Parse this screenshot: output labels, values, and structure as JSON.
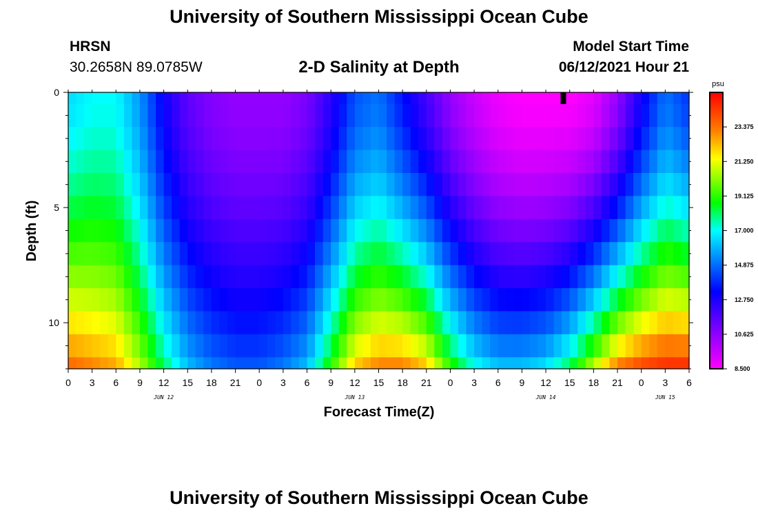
{
  "header": {
    "title": "University of Southern Mississippi Ocean Cube",
    "site": "HRSN",
    "coords": "30.2658N  89.0785W",
    "model_start_label": "Model Start Time",
    "model_start_time": "06/12/2021 Hour 21"
  },
  "footer": {
    "title": "University of Southern Mississippi Ocean Cube"
  },
  "chart_data": {
    "type": "heatmap",
    "title": "2-D Salinity at Depth",
    "xlabel": "Forecast Time(Z)",
    "ylabel": "Depth (ft)",
    "units": "psu",
    "xlim_hours": [
      0,
      78
    ],
    "ylim": [
      0,
      12
    ],
    "x_tick_labels": [
      "0",
      "3",
      "6",
      "9",
      "12",
      "15",
      "18",
      "21",
      "0",
      "3",
      "6",
      "9",
      "12",
      "15",
      "18",
      "21",
      "0",
      "3",
      "6",
      "9",
      "12",
      "15",
      "18",
      "21",
      "0",
      "3",
      "6"
    ],
    "y_tick_labels": [
      "0",
      "5",
      "10"
    ],
    "day_labels": [
      {
        "label": "JUN 12",
        "hour": 12
      },
      {
        "label": "JUN 13",
        "hour": 36
      },
      {
        "label": "JUN 14",
        "hour": 60
      },
      {
        "label": "JUN 15",
        "hour": 75
      }
    ],
    "colorbar": {
      "min": 8.5,
      "max": 25.5,
      "tick_labels": [
        "23.375",
        "21.250",
        "19.125",
        "17.000",
        "14.875",
        "12.750",
        "10.625",
        "8.500"
      ]
    },
    "current_time_marker_hour": 62.2,
    "time_hours": [
      0,
      3,
      6,
      9,
      12,
      15,
      18,
      21,
      24,
      27,
      30,
      33,
      36,
      39,
      42,
      45,
      48,
      51,
      54,
      57,
      60,
      63,
      66,
      69,
      72,
      75,
      78
    ],
    "depth_levels_ft": [
      0,
      1,
      2,
      3,
      4,
      5,
      6,
      7,
      8,
      9,
      10,
      11,
      12
    ],
    "salinity_surface": [
      16.5,
      17.0,
      17.0,
      15.5,
      13.0,
      11.5,
      10.8,
      10.5,
      10.5,
      10.5,
      11.0,
      12.5,
      14.5,
      15.0,
      13.5,
      12.0,
      10.5,
      9.5,
      8.8,
      8.5,
      8.5,
      8.5,
      9.0,
      10.5,
      13.0,
      15.0,
      14.0
    ],
    "salinity_bottom": [
      23.5,
      23.0,
      22.5,
      20.5,
      18.0,
      16.0,
      15.0,
      14.5,
      14.5,
      15.0,
      16.0,
      19.0,
      22.0,
      23.0,
      23.0,
      22.0,
      19.0,
      17.0,
      16.0,
      16.0,
      16.5,
      18.0,
      20.5,
      23.0,
      24.0,
      24.5,
      24.5
    ]
  }
}
